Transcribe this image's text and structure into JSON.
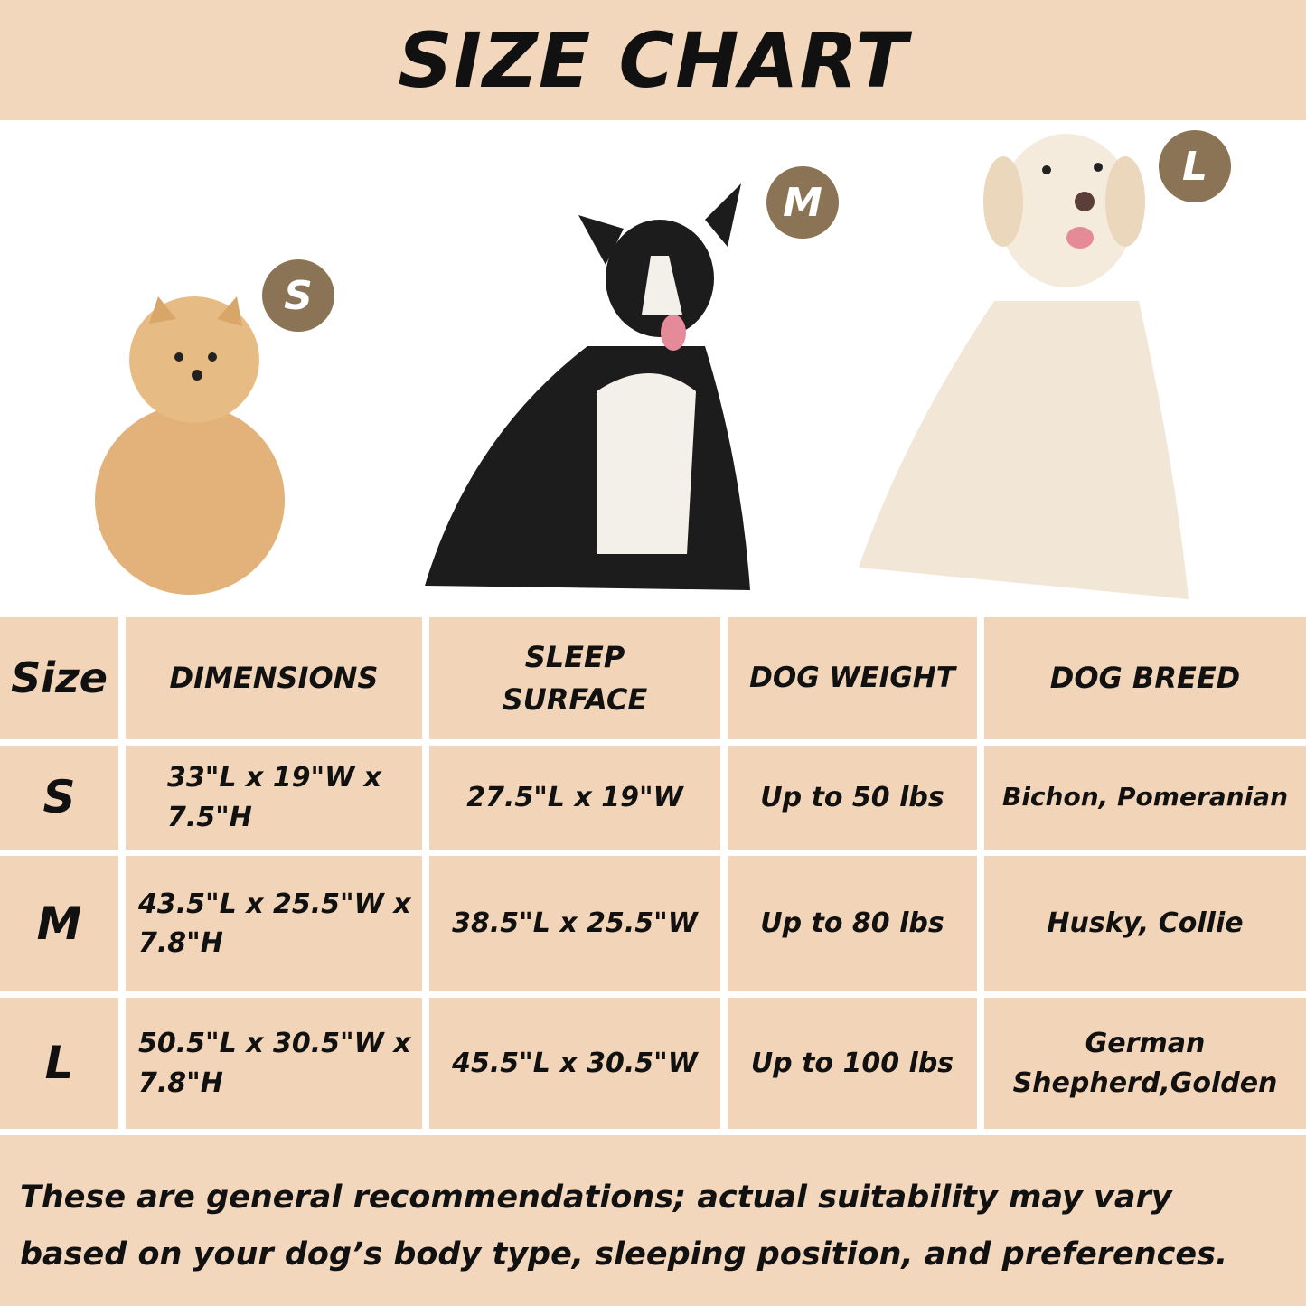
{
  "title": "SIZE CHART",
  "badges": [
    "S",
    "M",
    "L"
  ],
  "table": {
    "headers": [
      "Size",
      "DIMENSIONS",
      "SLEEP SURFACE",
      "DOG WEIGHT",
      "DOG BREED"
    ],
    "rows": [
      {
        "size": "S",
        "dimensions": "33\"L x 19\"W x 7.5\"H",
        "sleep_surface": "27.5\"L x 19\"W",
        "weight": "Up to 50 lbs",
        "breed": "Bichon, Pomeranian"
      },
      {
        "size": "M",
        "dimensions": "43.5\"L x 25.5\"W x 7.8\"H",
        "sleep_surface": "38.5\"L x 25.5\"W",
        "weight": "Up to 80 lbs",
        "breed": "Husky, Collie"
      },
      {
        "size": "L",
        "dimensions": "50.5\"L x 30.5\"W x 7.8\"H",
        "sleep_surface": "45.5\"L x 30.5\"W",
        "weight": "Up to 100 lbs",
        "breed": "German Shepherd,Golden"
      }
    ]
  },
  "footer": "These are general recommendations; actual suitability may vary based on your dog’s body type, sleeping position, and preferences.",
  "colors": {
    "band": "#f3d7bd",
    "cell": "#f2d5b8",
    "badge": "#8b7355",
    "text": "#111111"
  }
}
